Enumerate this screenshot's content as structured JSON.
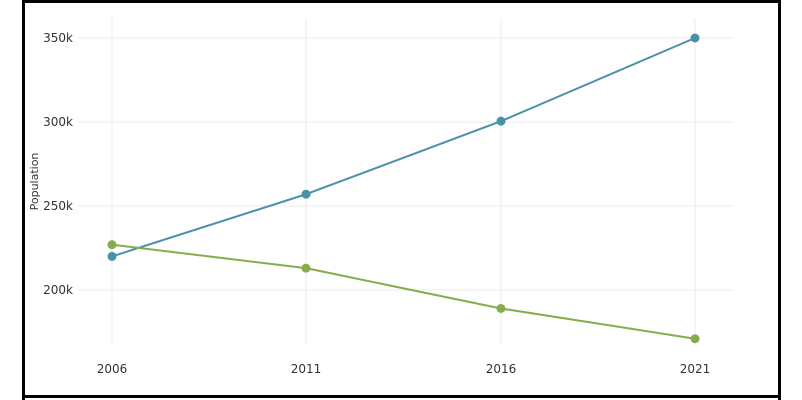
{
  "chart_data": {
    "type": "line",
    "title": "",
    "xlabel": "",
    "ylabel": "Population",
    "x": [
      "2006",
      "2011",
      "2016",
      "2021"
    ],
    "xlim": [
      2006,
      2021
    ],
    "ylim": [
      170000,
      357000
    ],
    "yticks": [
      200000,
      250000,
      300000,
      350000
    ],
    "ytick_labels": [
      "200k",
      "250k",
      "300k",
      "350k"
    ],
    "grid": true,
    "legend": "none",
    "series": [
      {
        "color": "#4a91a8",
        "values": [
          220000,
          257000,
          300500,
          350000
        ]
      },
      {
        "color": "#86ac4c",
        "values": [
          227000,
          213000,
          189000,
          171000
        ]
      }
    ]
  }
}
